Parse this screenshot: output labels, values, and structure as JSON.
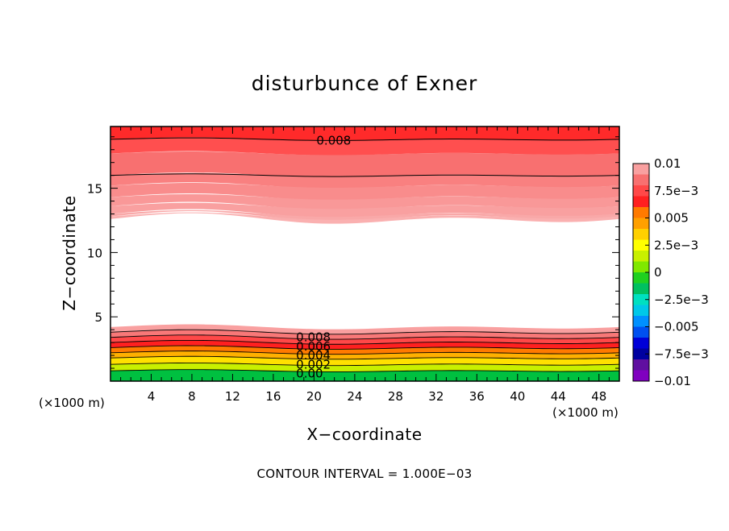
{
  "chart_data": {
    "type": "heatmap",
    "title": "disturbunce of Exner",
    "xlabel": "X−coordinate",
    "ylabel": "Z−coordinate",
    "x_unit_label": "(×1000 m)",
    "z_unit_label": "(×1000 m)",
    "xlim": [
      0,
      50
    ],
    "ylim": [
      0,
      19.8
    ],
    "x_ticks": [
      4,
      8,
      12,
      16,
      20,
      24,
      28,
      32,
      36,
      40,
      44,
      48
    ],
    "x_tick_labels": [
      "4",
      "8",
      "12",
      "16",
      "20",
      "24",
      "28",
      "32",
      "36",
      "40",
      "44",
      "48"
    ],
    "y_ticks": [
      5,
      10,
      15
    ],
    "y_tick_labels": [
      "5",
      "10",
      "15"
    ],
    "field_description": "Upper layer: values decrease from 0.01 at top (z~19.8) to near 0 around z~12.5; lower layer: values decrease from ~0.01 at z~4 to 0 near the surface; region between ~4 and ~12.5 is white (near zero)",
    "upper_layer": {
      "levels": [
        0.009,
        0.008,
        0.007,
        0.006,
        0.005,
        0.004,
        0.003,
        0.002,
        0.001
      ],
      "z_bottom_of_band": [
        18.8,
        17.7,
        16.0,
        15.2,
        14.3,
        13.6,
        13.0,
        12.8,
        12.6
      ]
    },
    "lower_layer": {
      "levels": [
        0.009,
        0.008,
        0.007,
        0.006,
        0.005,
        0.004,
        0.003,
        0.002,
        0.001
      ],
      "z_top_of_band": [
        4.2,
        3.8,
        3.4,
        3.0,
        2.6,
        2.2,
        1.8,
        1.3,
        0.8
      ]
    },
    "contour_labels": [
      {
        "text": "0.008",
        "x": 20,
        "z": 18.7
      },
      {
        "text": "0.008",
        "x": 18,
        "z": 3.4
      },
      {
        "text": "0.006",
        "x": 18,
        "z": 2.7
      },
      {
        "text": "0.004",
        "x": 18,
        "z": 2.0
      },
      {
        "text": "0.002",
        "x": 18,
        "z": 1.3
      },
      {
        "text": "0.00",
        "x": 18,
        "z": 0.6
      }
    ],
    "colorbar": {
      "min": -0.01,
      "max": 0.01,
      "tick_labels": [
        "0.01",
        "7.5e−3",
        "0.005",
        "2.5e−3",
        "0",
        "−2.5e−3",
        "−0.005",
        "−7.5e−3",
        "−0.01"
      ],
      "tick_values": [
        0.01,
        0.0075,
        0.005,
        0.0025,
        0,
        -0.0025,
        -0.005,
        -0.0075,
        -0.01
      ],
      "colors_top_to_bottom": [
        "#f9a0a0",
        "#f87070",
        "#ff4848",
        "#ff2020",
        "#ff7a00",
        "#ffa000",
        "#ffd000",
        "#ffff00",
        "#c8f000",
        "#80e800",
        "#20d020",
        "#00c060",
        "#00e0c0",
        "#00c8e8",
        "#0090ff",
        "#0050f0",
        "#0000d8",
        "#0000a0",
        "#6010a0",
        "#8000c0"
      ]
    },
    "contour_interval_text": "CONTOUR INTERVAL =  1.000E−03"
  }
}
